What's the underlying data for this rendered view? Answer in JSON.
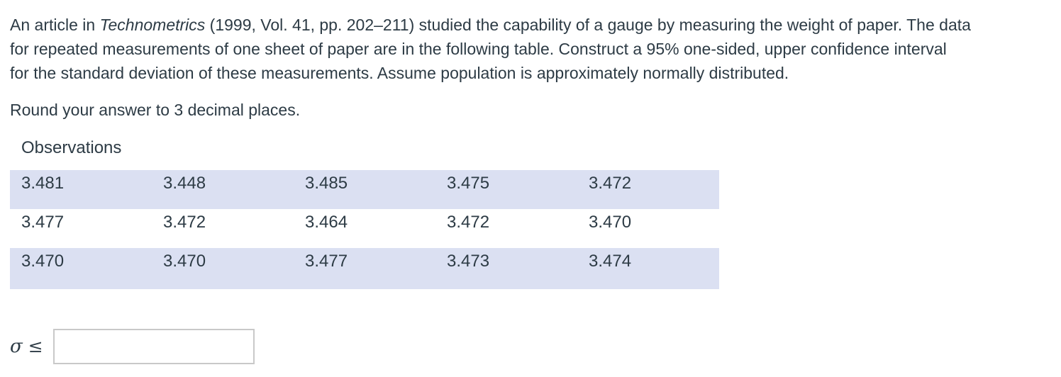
{
  "problem": {
    "line1_prefix": "An article in ",
    "line1_italic": "Technometrics",
    "line1_suffix": " (1999, Vol. 41, pp. 202–211) studied the capability of a gauge by measuring the weight of paper. The data",
    "line2": "for repeated measurements of one sheet of paper are in the following table. Construct a 95% one-sided, upper confidence interval",
    "line3": "for the standard deviation of these measurements. Assume population is approximately normally distributed.",
    "rounding_note": "Round your answer to 3 decimal places."
  },
  "table": {
    "title": "Observations",
    "rows": [
      [
        "3.481",
        "3.448",
        "3.485",
        "3.475",
        "3.472"
      ],
      [
        "3.477",
        "3.472",
        "3.464",
        "3.472",
        "3.470"
      ],
      [
        "3.470",
        "3.470",
        "3.477",
        "3.473",
        "3.474"
      ]
    ]
  },
  "answer": {
    "symbol": "σ",
    "relation": "≤",
    "input_value": "",
    "input_placeholder": ""
  },
  "colors": {
    "text": "#2d3b45",
    "row_stripe": "#dbe0f2",
    "input_border": "#c9c9c9"
  }
}
